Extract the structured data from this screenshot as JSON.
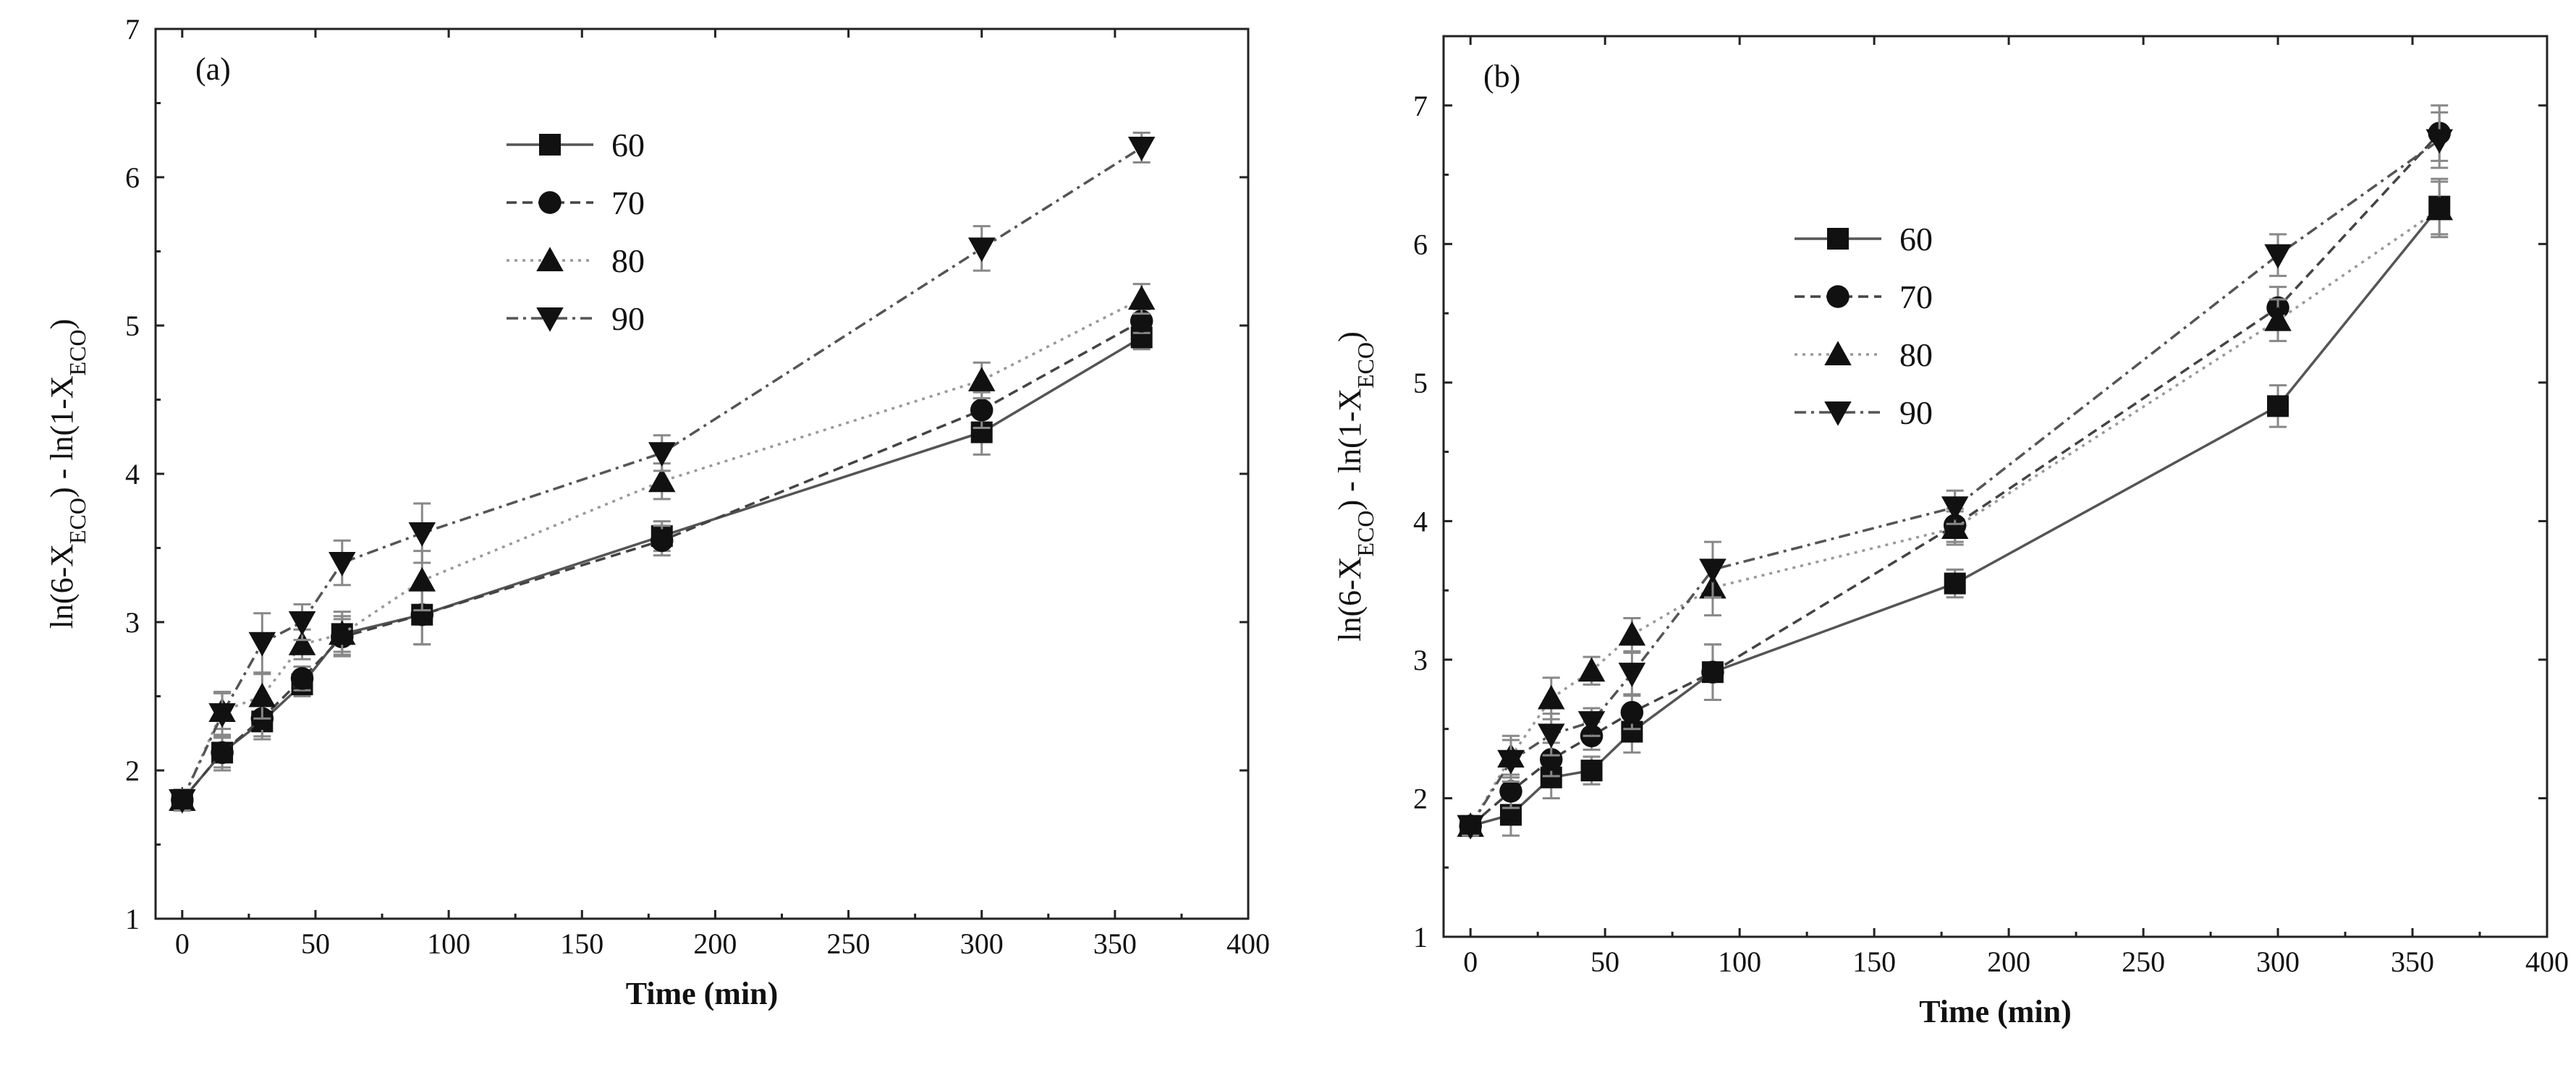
{
  "chart_data": [
    {
      "type": "line",
      "panel_label": "(a)",
      "xlabel": "Time (min)",
      "ylabel": "ln(6-X",
      "ylabel_sub": "ECO",
      "ylabel_mid": ") - ln(1-X",
      "ylabel_sub2": "ECO",
      "ylabel_end": ")",
      "xlim": [
        -10,
        400
      ],
      "ylim": [
        1,
        7
      ],
      "xticks": [
        0,
        50,
        100,
        150,
        200,
        250,
        300,
        350,
        400
      ],
      "yticks": [
        1,
        2,
        3,
        4,
        5,
        6,
        7
      ],
      "x": [
        0,
        15,
        30,
        45,
        60,
        90,
        180,
        300,
        360
      ],
      "legend_position": "upper-center",
      "series": [
        {
          "name": "60",
          "marker": "square",
          "dash": "solid",
          "values": [
            1.8,
            2.12,
            2.33,
            2.58,
            2.92,
            3.05,
            3.58,
            4.28,
            4.92
          ],
          "errors": [
            0.07,
            0.12,
            0.12,
            0.08,
            0.15,
            0.2,
            0.1,
            0.15,
            0.08
          ]
        },
        {
          "name": "70",
          "marker": "circle",
          "dash": "dashed",
          "values": [
            1.8,
            2.12,
            2.35,
            2.62,
            2.9,
            3.05,
            3.55,
            4.43,
            5.03
          ],
          "errors": [
            0.07,
            0.1,
            0.12,
            0.08,
            0.12,
            0.2,
            0.1,
            0.12,
            0.08
          ]
        },
        {
          "name": "80",
          "marker": "triangle-up",
          "dash": "dotted",
          "values": [
            1.8,
            2.4,
            2.5,
            2.85,
            2.92,
            3.28,
            3.95,
            4.63,
            5.18
          ],
          "errors": [
            0.07,
            0.12,
            0.15,
            0.1,
            0.12,
            0.2,
            0.12,
            0.12,
            0.1
          ]
        },
        {
          "name": "90",
          "marker": "triangle-down",
          "dash": "dashdot",
          "values": [
            1.8,
            2.38,
            2.86,
            3.0,
            3.4,
            3.6,
            4.14,
            5.52,
            6.2
          ],
          "errors": [
            0.07,
            0.15,
            0.2,
            0.12,
            0.15,
            0.2,
            0.12,
            0.15,
            0.1
          ]
        }
      ]
    },
    {
      "type": "line",
      "panel_label": "(b)",
      "xlabel": "Time (min)",
      "ylabel": "ln(6-X",
      "ylabel_sub": "ECO",
      "ylabel_mid": ") - ln(1-X",
      "ylabel_sub2": "ECO",
      "ylabel_end": ")",
      "xlim": [
        -10,
        400
      ],
      "ylim": [
        1,
        7.5
      ],
      "xticks": [
        0,
        50,
        100,
        150,
        200,
        250,
        300,
        350,
        400
      ],
      "yticks": [
        1,
        2,
        3,
        4,
        5,
        6,
        7
      ],
      "x": [
        0,
        15,
        30,
        45,
        60,
        90,
        180,
        300,
        360
      ],
      "legend_position": "center-left",
      "series": [
        {
          "name": "60",
          "marker": "square",
          "dash": "solid",
          "values": [
            1.8,
            1.88,
            2.15,
            2.2,
            2.48,
            2.91,
            3.55,
            4.83,
            6.27
          ],
          "errors": [
            0.07,
            0.15,
            0.15,
            0.1,
            0.15,
            0.2,
            0.1,
            0.15,
            0.2
          ]
        },
        {
          "name": "70",
          "marker": "circle",
          "dash": "dashed",
          "values": [
            1.8,
            2.05,
            2.28,
            2.45,
            2.62,
            2.91,
            3.97,
            5.54,
            6.8
          ],
          "errors": [
            0.07,
            0.12,
            0.12,
            0.1,
            0.12,
            0.2,
            0.12,
            0.15,
            0.2
          ]
        },
        {
          "name": "80",
          "marker": "triangle-up",
          "dash": "dotted",
          "values": [
            1.8,
            2.3,
            2.72,
            2.92,
            3.18,
            3.52,
            3.95,
            5.45,
            6.25
          ],
          "errors": [
            0.07,
            0.15,
            0.15,
            0.1,
            0.12,
            0.2,
            0.12,
            0.15,
            0.2
          ]
        },
        {
          "name": "90",
          "marker": "triangle-down",
          "dash": "dashdot",
          "values": [
            1.8,
            2.27,
            2.46,
            2.55,
            2.9,
            3.65,
            4.1,
            5.92,
            6.75
          ],
          "errors": [
            0.07,
            0.15,
            0.15,
            0.1,
            0.15,
            0.2,
            0.12,
            0.15,
            0.2
          ]
        }
      ]
    }
  ]
}
